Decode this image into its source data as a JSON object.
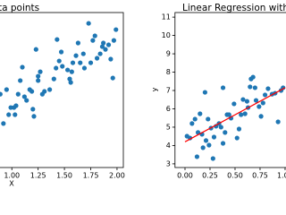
{
  "chart_data": [
    {
      "type": "scatter",
      "title": "ta points",
      "x_label": "X",
      "xlim": [
        0.76,
        2.06
      ],
      "ylim": [
        2.8,
        11.25
      ],
      "xticks": [
        {
          "value": 1,
          "label": "1.00"
        },
        1.25,
        {
          "value": 1.5,
          "label": "1.50"
        },
        1.75,
        {
          "value": 2,
          "label": "2.00"
        }
      ],
      "series": [
        {
          "type": "scatter",
          "color": "#1f77b4",
          "x": [
            0.89,
            0.92,
            0.95,
            0.97,
            0.99,
            1.02,
            1.03,
            1.04,
            1.06,
            1.08,
            1.1,
            1.12,
            1.14,
            1.17,
            1.19,
            1.2,
            1.21,
            1.23,
            1.25,
            1.25,
            1.27,
            1.29,
            1.31,
            1.36,
            1.4,
            1.42,
            1.43,
            1.45,
            1.47,
            1.48,
            1.53,
            1.55,
            1.56,
            1.57,
            1.58,
            1.61,
            1.63,
            1.65,
            1.68,
            1.69,
            1.73,
            1.75,
            1.77,
            1.79,
            1.81,
            1.84,
            1.86,
            1.87,
            1.89,
            1.92,
            1.94,
            1.96,
            1.97,
            1.99
          ],
          "values": [
            6.8,
            5.2,
            7.05,
            5.68,
            6.07,
            6.07,
            5.68,
            6.17,
            6.8,
            7.54,
            8.27,
            6.66,
            6.46,
            7.05,
            6.95,
            5.98,
            5.59,
            9.24,
            7.54,
            7.78,
            8.02,
            6.8,
            6.95,
            7.05,
            7.63,
            8.22,
            9.78,
            8.61,
            9.1,
            8.32,
            8.12,
            7.63,
            7.44,
            8.02,
            8.51,
            8.9,
            9.59,
            8.51,
            9.0,
            8.22,
            10.66,
            8.51,
            9.73,
            9.98,
            8.76,
            9.0,
            9.39,
            9.59,
            9.24,
            9.49,
            8.71,
            7.68,
            9.73,
            10.32
          ]
        }
      ]
    },
    {
      "type": "scatter",
      "title": "Linear Regression with Co",
      "y_label": "y",
      "xlim": [
        -0.1,
        1.17
      ],
      "ylim": [
        2.8,
        11.25
      ],
      "xticks": [
        {
          "value": 0,
          "label": "0.00"
        },
        0.25,
        {
          "value": 0.5,
          "label": "0.50"
        },
        0.75,
        {
          "value": 1,
          "label": "1.00"
        }
      ],
      "yticks": [
        3,
        4,
        5,
        6,
        7,
        8,
        9,
        10,
        11
      ],
      "series": [
        {
          "type": "scatter",
          "color": "#1f77b4",
          "x": [
            0.02,
            0.05,
            0.07,
            0.1,
            0.12,
            0.13,
            0.15,
            0.17,
            0.18,
            0.2,
            0.21,
            0.23,
            0.24,
            0.26,
            0.28,
            0.29,
            0.31,
            0.34,
            0.36,
            0.38,
            0.38,
            0.4,
            0.42,
            0.44,
            0.46,
            0.49,
            0.52,
            0.54,
            0.56,
            0.58,
            0.6,
            0.62,
            0.63,
            0.65,
            0.66,
            0.68,
            0.7,
            0.71,
            0.74,
            0.76,
            0.78,
            0.8,
            0.83,
            0.87,
            0.9,
            0.93,
            0.96,
            0.98
          ],
          "values": [
            4.51,
            4.41,
            5.2,
            5.44,
            3.39,
            4.71,
            5.73,
            4.61,
            3.88,
            6.9,
            4.27,
            5.44,
            4.02,
            4.95,
            3.29,
            4.46,
            5.05,
            5.2,
            5.0,
            4.12,
            7.15,
            4.71,
            5.68,
            5.68,
            5.49,
            6.27,
            4.41,
            4.9,
            5.68,
            6.51,
            5.73,
            6.41,
            6.07,
            7.2,
            7.63,
            7.73,
            7.15,
            6.46,
            6.12,
            5.59,
            6.32,
            6.76,
            7.1,
            6.8,
            6.85,
            5.29,
            7.0,
            7.15
          ]
        },
        {
          "type": "line",
          "color": "#ff0000",
          "x": [
            0,
            1
          ],
          "values": [
            4.2,
            7.15
          ]
        }
      ]
    }
  ]
}
